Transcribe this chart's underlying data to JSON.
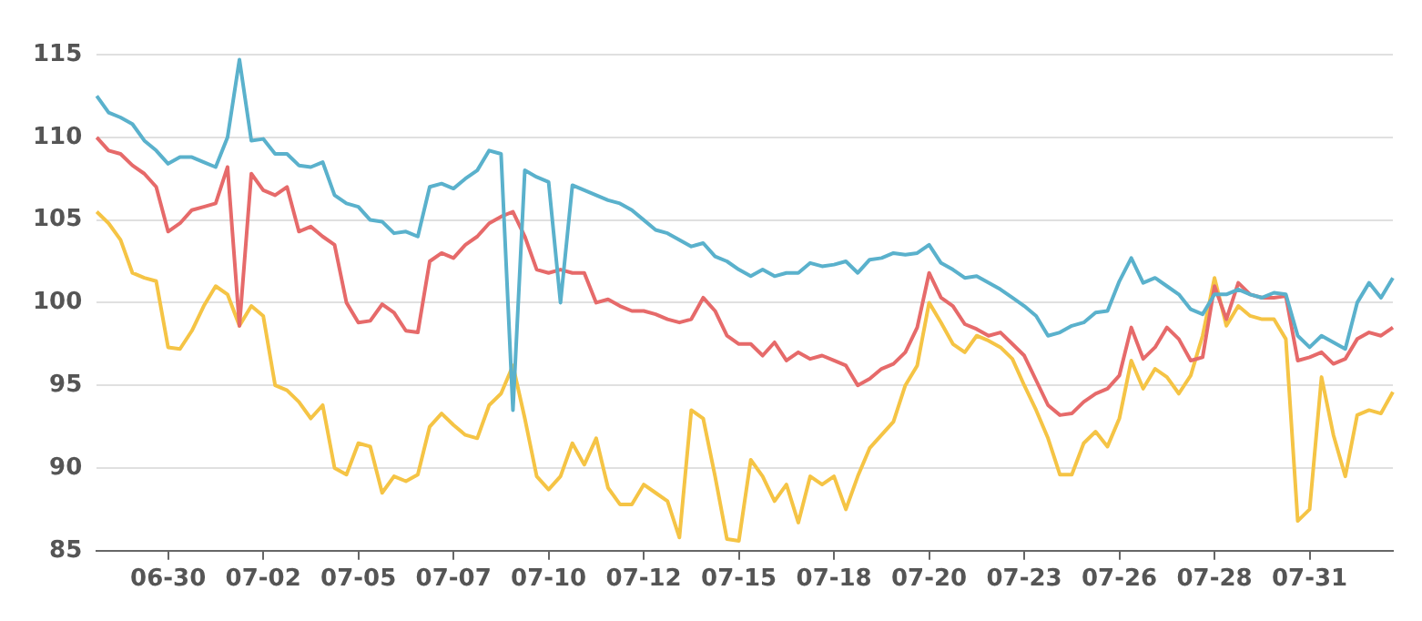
{
  "chart_data": {
    "type": "line",
    "categories": [
      null,
      null,
      null,
      null,
      null,
      null,
      "06-30",
      null,
      null,
      null,
      null,
      null,
      null,
      null,
      "07-02",
      null,
      null,
      null,
      null,
      null,
      null,
      null,
      "07-05",
      null,
      null,
      null,
      null,
      null,
      null,
      null,
      "07-07",
      null,
      null,
      null,
      null,
      null,
      null,
      null,
      "07-10",
      null,
      null,
      null,
      null,
      null,
      null,
      null,
      "07-12",
      null,
      null,
      null,
      null,
      null,
      null,
      null,
      "07-15",
      null,
      null,
      null,
      null,
      null,
      null,
      null,
      "07-18",
      null,
      null,
      null,
      null,
      null,
      null,
      null,
      "07-20",
      null,
      null,
      null,
      null,
      null,
      null,
      null,
      "07-23",
      null,
      null,
      null,
      null,
      null,
      null,
      null,
      "07-26",
      null,
      null,
      null,
      null,
      null,
      null,
      null,
      "07-28",
      null,
      null,
      null,
      null,
      null,
      null,
      null,
      "07-31",
      null,
      null,
      null,
      null,
      null,
      null,
      null
    ],
    "series": [
      {
        "color": "#5ab1cc",
        "values": [
          112.5,
          111.5,
          111.2,
          110.8,
          109.8,
          109.2,
          108.4,
          108.8,
          108.8,
          108.5,
          108.2,
          110.0,
          114.7,
          109.8,
          109.9,
          109.0,
          109.0,
          108.3,
          108.2,
          108.5,
          106.5,
          106.0,
          105.8,
          105.0,
          104.9,
          104.2,
          104.3,
          104.0,
          107.0,
          107.2,
          106.9,
          107.5,
          108.0,
          109.2,
          109.0,
          93.5,
          108.0,
          107.6,
          107.3,
          100.0,
          107.1,
          106.8,
          106.5,
          106.2,
          106.0,
          105.6,
          105.0,
          104.4,
          104.2,
          103.8,
          103.4,
          103.6,
          102.8,
          102.5,
          102.0,
          101.6,
          102.0,
          101.6,
          101.8,
          101.8,
          102.4,
          102.2,
          102.3,
          102.5,
          101.8,
          102.6,
          102.7,
          103.0,
          102.9,
          103.0,
          103.5,
          102.4,
          102.0,
          101.5,
          101.6,
          101.2,
          100.8,
          100.3,
          99.8,
          99.2,
          98.0,
          98.2,
          98.6,
          98.8,
          99.4,
          99.5,
          101.3,
          102.7,
          101.2,
          101.5,
          101.0,
          100.5,
          99.6,
          99.3,
          100.5,
          100.5,
          100.8,
          100.5,
          100.3,
          100.6,
          100.5,
          98.0,
          97.3,
          98.0,
          97.6,
          97.2,
          100.0,
          101.2,
          100.3,
          101.5
        ]
      },
      {
        "color": "#e66a6a",
        "values": [
          110.0,
          109.2,
          109.0,
          108.3,
          107.8,
          107.0,
          104.3,
          104.8,
          105.6,
          105.8,
          106.0,
          108.2,
          98.6,
          107.8,
          106.8,
          106.5,
          107.0,
          104.3,
          104.6,
          104.0,
          103.5,
          100.0,
          98.8,
          98.9,
          99.9,
          99.4,
          98.3,
          98.2,
          102.5,
          103.0,
          102.7,
          103.5,
          104.0,
          104.8,
          105.2,
          105.5,
          104.0,
          102.0,
          101.8,
          102.0,
          101.8,
          101.8,
          100.0,
          100.2,
          99.8,
          99.5,
          99.5,
          99.3,
          99.0,
          98.8,
          99.0,
          100.3,
          99.5,
          98.0,
          97.5,
          97.5,
          96.8,
          97.6,
          96.5,
          97.0,
          96.6,
          96.8,
          96.5,
          96.2,
          95.0,
          95.4,
          96.0,
          96.3,
          97.0,
          98.5,
          101.8,
          100.3,
          99.8,
          98.7,
          98.4,
          98.0,
          98.2,
          97.5,
          96.8,
          95.3,
          93.8,
          93.2,
          93.3,
          94.0,
          94.5,
          94.8,
          95.6,
          98.5,
          96.6,
          97.3,
          98.5,
          97.8,
          96.5,
          96.7,
          101.0,
          99.0,
          101.2,
          100.5,
          100.3,
          100.3,
          100.4,
          96.5,
          96.7,
          97.0,
          96.3,
          96.6,
          97.8,
          98.2,
          98.0,
          98.5
        ]
      },
      {
        "color": "#f5c445",
        "values": [
          105.5,
          104.8,
          103.8,
          101.8,
          101.5,
          101.3,
          97.3,
          97.2,
          98.3,
          99.8,
          101.0,
          100.5,
          98.6,
          99.8,
          99.2,
          95.0,
          94.7,
          94.0,
          93.0,
          93.8,
          90.0,
          89.6,
          91.5,
          91.3,
          88.5,
          89.5,
          89.2,
          89.6,
          92.5,
          93.3,
          92.6,
          92.0,
          91.8,
          93.8,
          94.5,
          96.2,
          93.0,
          89.5,
          88.7,
          89.5,
          91.5,
          90.2,
          91.8,
          88.8,
          87.8,
          87.8,
          89.0,
          88.5,
          88.0,
          85.8,
          93.5,
          93.0,
          89.5,
          85.7,
          85.6,
          90.5,
          89.5,
          88.0,
          89.0,
          86.7,
          89.5,
          89.0,
          89.5,
          87.5,
          89.5,
          91.2,
          92.0,
          92.8,
          95.0,
          96.2,
          100.0,
          98.8,
          97.5,
          97.0,
          98.0,
          97.7,
          97.3,
          96.6,
          95.0,
          93.5,
          91.8,
          89.6,
          89.6,
          91.5,
          92.2,
          91.3,
          93.0,
          96.5,
          94.8,
          96.0,
          95.5,
          94.5,
          95.6,
          98.0,
          101.5,
          98.6,
          99.8,
          99.2,
          99.0,
          99.0,
          97.8,
          86.8,
          87.5,
          95.5,
          92.0,
          89.5,
          93.2,
          93.5,
          93.3,
          94.6
        ]
      }
    ],
    "ylim": [
      85,
      115
    ],
    "yticks": [
      85,
      90,
      95,
      100,
      105,
      110,
      115
    ],
    "grid": "y",
    "legend": false,
    "marker": "none",
    "line_style": "solid"
  }
}
